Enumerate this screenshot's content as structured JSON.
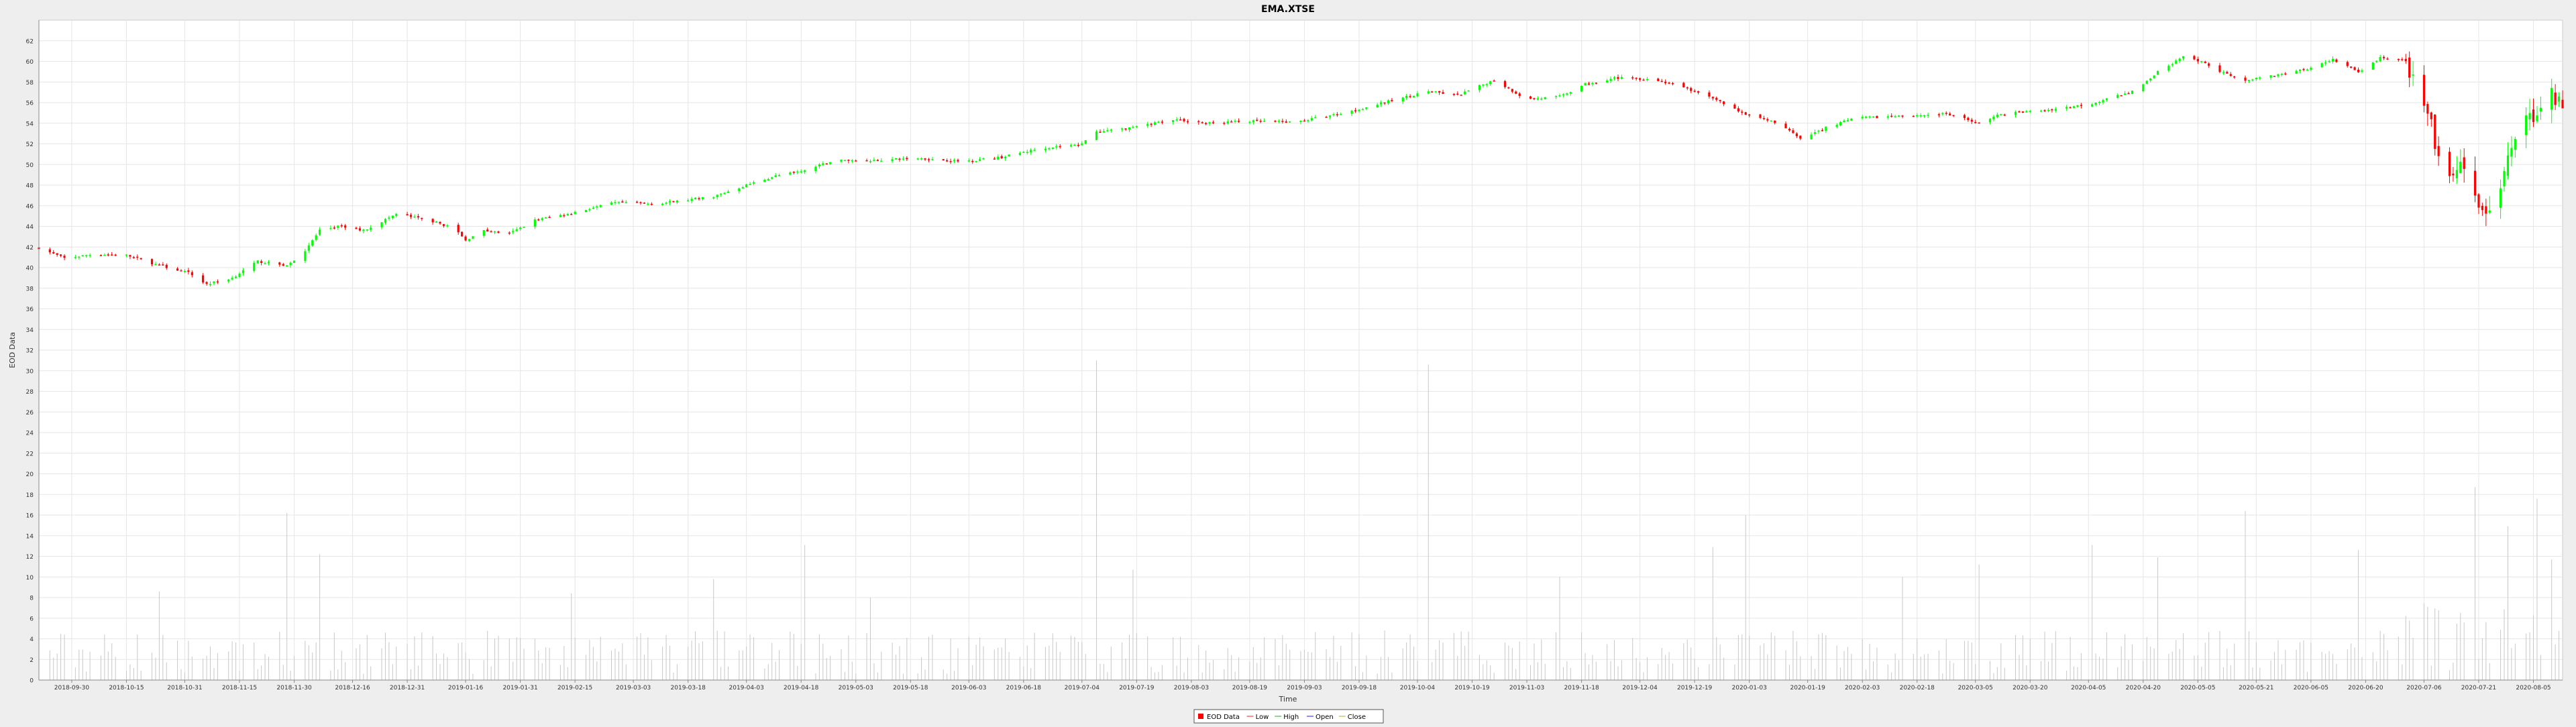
{
  "chart_data": {
    "type": "candlestick",
    "title": "EMA.XTSE",
    "xlabel": "Time",
    "ylabel": "EOD Data",
    "ylim": [
      0,
      64
    ],
    "y_ticks": [
      0,
      2,
      4,
      6,
      8,
      10,
      12,
      14,
      16,
      18,
      20,
      22,
      24,
      26,
      28,
      30,
      32,
      34,
      36,
      38,
      40,
      42,
      44,
      46,
      48,
      50,
      52,
      54,
      56,
      58,
      60,
      62
    ],
    "x_range": [
      "2018-09-21",
      "2020-08-13"
    ],
    "x_ticks": [
      "2018-09-30",
      "2018-10-15",
      "2018-10-31",
      "2018-11-15",
      "2018-11-30",
      "2018-12-16",
      "2018-12-31",
      "2019-01-16",
      "2019-01-31",
      "2019-02-15",
      "2019-03-03",
      "2019-03-18",
      "2019-04-03",
      "2019-04-18",
      "2019-05-03",
      "2019-05-18",
      "2019-06-03",
      "2019-06-18",
      "2019-07-04",
      "2019-07-19",
      "2019-08-03",
      "2019-08-19",
      "2019-09-03",
      "2019-09-18",
      "2019-10-04",
      "2019-10-19",
      "2019-11-03",
      "2019-11-18",
      "2019-12-04",
      "2019-12-19",
      "2020-01-03",
      "2020-01-19",
      "2020-02-03",
      "2020-02-18",
      "2020-03-05",
      "2020-03-20",
      "2020-04-05",
      "2020-04-20",
      "2020-05-05",
      "2020-05-21",
      "2020-06-05",
      "2020-06-20",
      "2020-07-06",
      "2020-07-21",
      "2020-08-05"
    ],
    "close_anchors": [
      [
        "2018-09-21",
        41.9
      ],
      [
        "2018-09-28",
        40.9
      ],
      [
        "2018-10-06",
        41.3
      ],
      [
        "2018-10-15",
        41.2
      ],
      [
        "2018-10-24",
        40.2
      ],
      [
        "2018-11-01",
        39.5
      ],
      [
        "2018-11-06",
        38.4
      ],
      [
        "2018-11-13",
        39.0
      ],
      [
        "2018-11-20",
        40.6
      ],
      [
        "2018-11-28",
        40.2
      ],
      [
        "2018-12-02",
        41.2
      ],
      [
        "2018-12-07",
        43.6
      ],
      [
        "2018-12-12",
        44.0
      ],
      [
        "2018-12-19",
        43.6
      ],
      [
        "2018-12-28",
        45.2
      ],
      [
        "2019-01-06",
        44.6
      ],
      [
        "2019-01-13",
        43.8
      ],
      [
        "2019-01-16",
        42.6
      ],
      [
        "2019-01-20",
        43.6
      ],
      [
        "2019-01-28",
        43.3
      ],
      [
        "2019-02-04",
        44.6
      ],
      [
        "2019-02-14",
        45.3
      ],
      [
        "2019-02-26",
        46.3
      ],
      [
        "2019-03-10",
        46.2
      ],
      [
        "2019-03-25",
        46.9
      ],
      [
        "2019-04-03",
        48.0
      ],
      [
        "2019-04-11",
        48.9
      ],
      [
        "2019-04-19",
        49.4
      ],
      [
        "2019-04-27",
        50.4
      ],
      [
        "2019-05-07",
        50.4
      ],
      [
        "2019-05-20",
        50.6
      ],
      [
        "2019-06-01",
        50.3
      ],
      [
        "2019-06-12",
        50.7
      ],
      [
        "2019-06-23",
        51.6
      ],
      [
        "2019-07-03",
        51.9
      ],
      [
        "2019-07-08",
        53.1
      ],
      [
        "2019-07-18",
        53.6
      ],
      [
        "2019-07-29",
        54.4
      ],
      [
        "2019-08-07",
        54.0
      ],
      [
        "2019-08-18",
        54.2
      ],
      [
        "2019-08-31",
        54.1
      ],
      [
        "2019-09-14",
        55.0
      ],
      [
        "2019-09-28",
        56.3
      ],
      [
        "2019-10-07",
        57.1
      ],
      [
        "2019-10-15",
        56.7
      ],
      [
        "2019-10-25",
        58.2
      ],
      [
        "2019-11-03",
        56.3
      ],
      [
        "2019-11-12",
        56.6
      ],
      [
        "2019-11-19",
        57.8
      ],
      [
        "2019-11-27",
        58.4
      ],
      [
        "2019-12-07",
        58.3
      ],
      [
        "2019-12-15",
        57.6
      ],
      [
        "2019-12-24",
        56.4
      ],
      [
        "2020-01-02",
        54.8
      ],
      [
        "2020-01-12",
        53.9
      ],
      [
        "2020-01-17",
        52.4
      ],
      [
        "2020-01-24",
        53.6
      ],
      [
        "2020-02-01",
        54.5
      ],
      [
        "2020-02-14",
        54.7
      ],
      [
        "2020-02-26",
        54.9
      ],
      [
        "2020-03-06",
        54.0
      ],
      [
        "2020-03-12",
        54.9
      ],
      [
        "2020-03-25",
        55.3
      ],
      [
        "2020-04-06",
        55.9
      ],
      [
        "2020-04-18",
        57.2
      ],
      [
        "2020-04-24",
        59.0
      ],
      [
        "2020-05-01",
        60.4
      ],
      [
        "2020-05-06",
        60.0
      ],
      [
        "2020-05-11",
        59.0
      ],
      [
        "2020-05-18",
        58.2
      ],
      [
        "2020-05-25",
        58.6
      ],
      [
        "2020-06-04",
        59.3
      ],
      [
        "2020-06-11",
        60.2
      ],
      [
        "2020-06-18",
        59.0
      ],
      [
        "2020-06-24",
        60.4
      ],
      [
        "2020-06-30",
        60.2
      ],
      [
        "2020-07-04",
        57.6
      ],
      [
        "2020-07-08",
        53.6
      ],
      [
        "2020-07-12",
        47.6
      ],
      [
        "2020-07-16",
        50.0
      ],
      [
        "2020-07-20",
        46.5
      ],
      [
        "2020-07-25",
        44.6
      ],
      [
        "2020-07-29",
        50.2
      ],
      [
        "2020-08-02",
        53.6
      ],
      [
        "2020-08-06",
        55.3
      ],
      [
        "2020-08-10",
        56.8
      ],
      [
        "2020-08-13",
        56.1
      ]
    ],
    "volume_note": "thin vertical lines near the baseline; most between 0 and 8, spikes up to ~31",
    "volume_spikes": [
      [
        "2018-10-24",
        8.6
      ],
      [
        "2018-11-28",
        16.2
      ],
      [
        "2018-12-07",
        12.2
      ],
      [
        "2019-01-13",
        8.6
      ],
      [
        "2019-02-14",
        8.4
      ],
      [
        "2019-03-25",
        9.8
      ],
      [
        "2019-04-19",
        13.1
      ],
      [
        "2019-05-07",
        8.0
      ],
      [
        "2019-07-08",
        31.0
      ],
      [
        "2019-07-18",
        10.7
      ],
      [
        "2019-08-31",
        13.6
      ],
      [
        "2019-09-28",
        11.2
      ],
      [
        "2019-10-07",
        30.6
      ],
      [
        "2019-11-12",
        10.0
      ],
      [
        "2019-12-07",
        17.7
      ],
      [
        "2019-12-24",
        12.9
      ],
      [
        "2020-01-02",
        16.0
      ],
      [
        "2020-01-12",
        15.0
      ],
      [
        "2020-02-14",
        10.0
      ],
      [
        "2020-03-06",
        11.2
      ],
      [
        "2020-04-06",
        13.1
      ],
      [
        "2020-04-24",
        11.9
      ],
      [
        "2020-05-18",
        16.4
      ],
      [
        "2020-06-18",
        12.6
      ],
      [
        "2020-07-04",
        18.2
      ],
      [
        "2020-07-12",
        15.9
      ],
      [
        "2020-07-20",
        18.7
      ],
      [
        "2020-07-25",
        17.9
      ],
      [
        "2020-07-29",
        14.9
      ],
      [
        "2020-08-06",
        17.6
      ],
      [
        "2020-08-10",
        11.7
      ]
    ],
    "up_color": "#00ff00",
    "down_color": "#ff0000",
    "volume_color": "#c8c8c8",
    "grid": true,
    "legend_position": "bottom-center",
    "legend": [
      "EOD Data",
      "Low",
      "High",
      "Open",
      "Close"
    ]
  },
  "colors": {
    "background": "#eeeeee",
    "plot_background": "#ffffff",
    "gridline": "#e6e6e6",
    "axis": "#888888",
    "text": "#333333"
  }
}
